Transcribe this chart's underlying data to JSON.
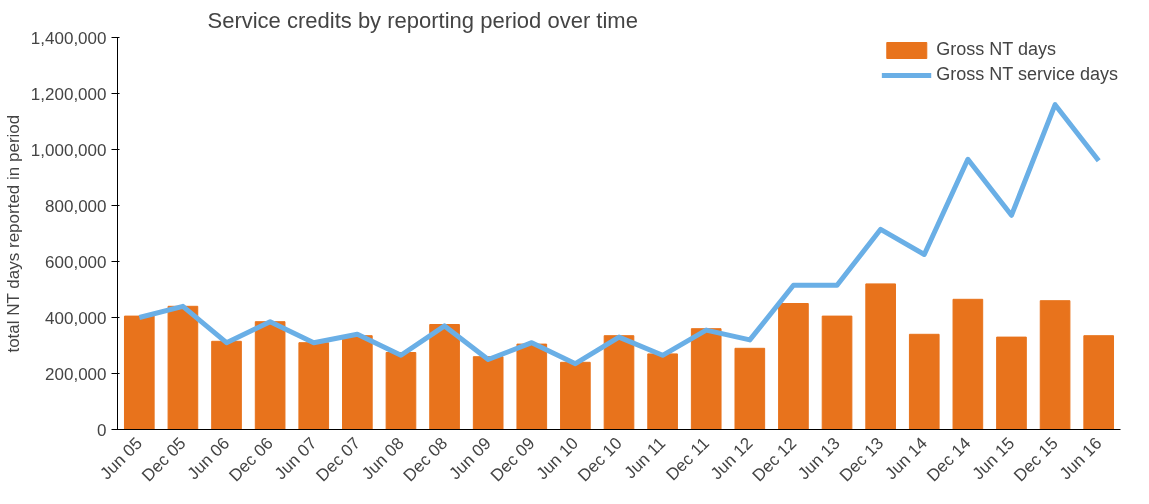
{
  "chart_data": {
    "type": "bar",
    "title": "Service credits by reporting period over time",
    "ylabel": "total NT days reported in period",
    "categories": [
      "Jun 05",
      "Dec 05",
      "Jun 06",
      "Dec 06",
      "Jun 07",
      "Dec 07",
      "Jun 08",
      "Dec 08",
      "Jun 09",
      "Dec 09",
      "Jun 10",
      "Dec 10",
      "Jun 11",
      "Dec 11",
      "Jun 12",
      "Dec 12",
      "Jun 13",
      "Dec 13",
      "Jun 14",
      "Dec 14",
      "Jun 15",
      "Dec 15",
      "Jun 16"
    ],
    "series": [
      {
        "name": "Gross NT days",
        "color": "#e8731c",
        "values": [
          405000,
          440000,
          315000,
          385000,
          310000,
          335000,
          275000,
          375000,
          260000,
          305000,
          240000,
          335000,
          270000,
          360000,
          290000,
          450000,
          405000,
          520000,
          340000,
          465000,
          330000,
          460000,
          335000
        ]
      },
      {
        "name": "Gross NT service days",
        "type": "line",
        "color": "#6aafe6",
        "values": [
          400000,
          440000,
          310000,
          385000,
          310000,
          340000,
          265000,
          370000,
          250000,
          310000,
          235000,
          330000,
          265000,
          355000,
          320000,
          515000,
          515000,
          715000,
          625000,
          965000,
          765000,
          1160000,
          960000
        ]
      }
    ],
    "ylim": [
      0,
      1400000
    ],
    "yticks": [
      {
        "value": 0,
        "label": "0"
      },
      {
        "value": 200000,
        "label": "200,000"
      },
      {
        "value": 400000,
        "label": "400,000"
      },
      {
        "value": 600000,
        "label": "600,000"
      },
      {
        "value": 800000,
        "label": "800,000"
      },
      {
        "value": 1000000,
        "label": "1,000,000"
      },
      {
        "value": 1200000,
        "label": "1,200,000"
      },
      {
        "value": 1400000,
        "label": "1,400,000"
      }
    ],
    "grid": false,
    "legend": "top right"
  }
}
